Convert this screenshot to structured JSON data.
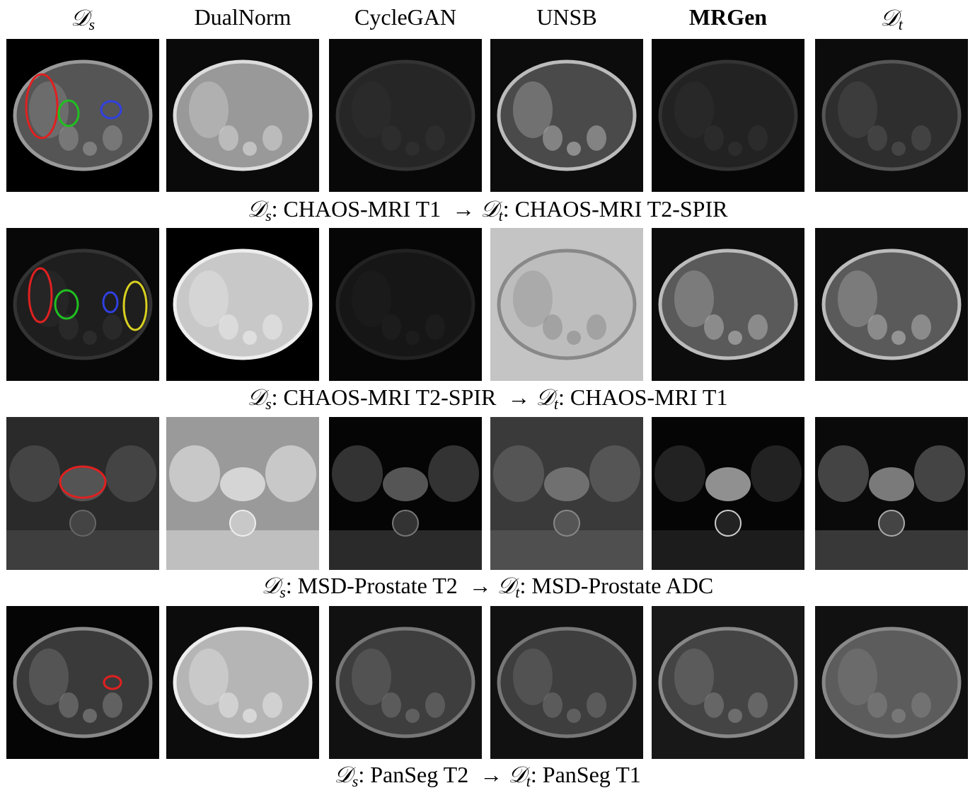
{
  "figure": {
    "headers": [
      {
        "symbol": "𝒟",
        "sub": "s"
      },
      {
        "text": "DualNorm"
      },
      {
        "text": "CycleGAN"
      },
      {
        "text": "UNSB"
      },
      {
        "text": "MRGen",
        "bold": true
      },
      {
        "symbol": "𝒟",
        "sub": "t"
      }
    ],
    "captions": [
      {
        "source_symbol": "𝒟",
        "source_sub": "s",
        "source_label": ": CHAOS-MRI T1",
        "arrow": "→",
        "target_symbol": "𝒟",
        "target_sub": "t",
        "target_label": ": CHAOS-MRI T2-SPIR"
      },
      {
        "source_symbol": "𝒟",
        "source_sub": "s",
        "source_label": ": CHAOS-MRI T2-SPIR",
        "arrow": "→",
        "target_symbol": "𝒟",
        "target_sub": "t",
        "target_label": ": CHAOS-MRI T1"
      },
      {
        "source_symbol": "𝒟",
        "source_sub": "s",
        "source_label": ": MSD-Prostate T2",
        "arrow": "→",
        "target_symbol": "𝒟",
        "target_sub": "t",
        "target_label": ": MSD-Prostate ADC"
      },
      {
        "source_symbol": "𝒟",
        "source_sub": "s",
        "source_label": ": PanSeg T2",
        "arrow": "→",
        "target_symbol": "𝒟",
        "target_sub": "t",
        "target_label": ": PanSeg T1"
      }
    ]
  }
}
